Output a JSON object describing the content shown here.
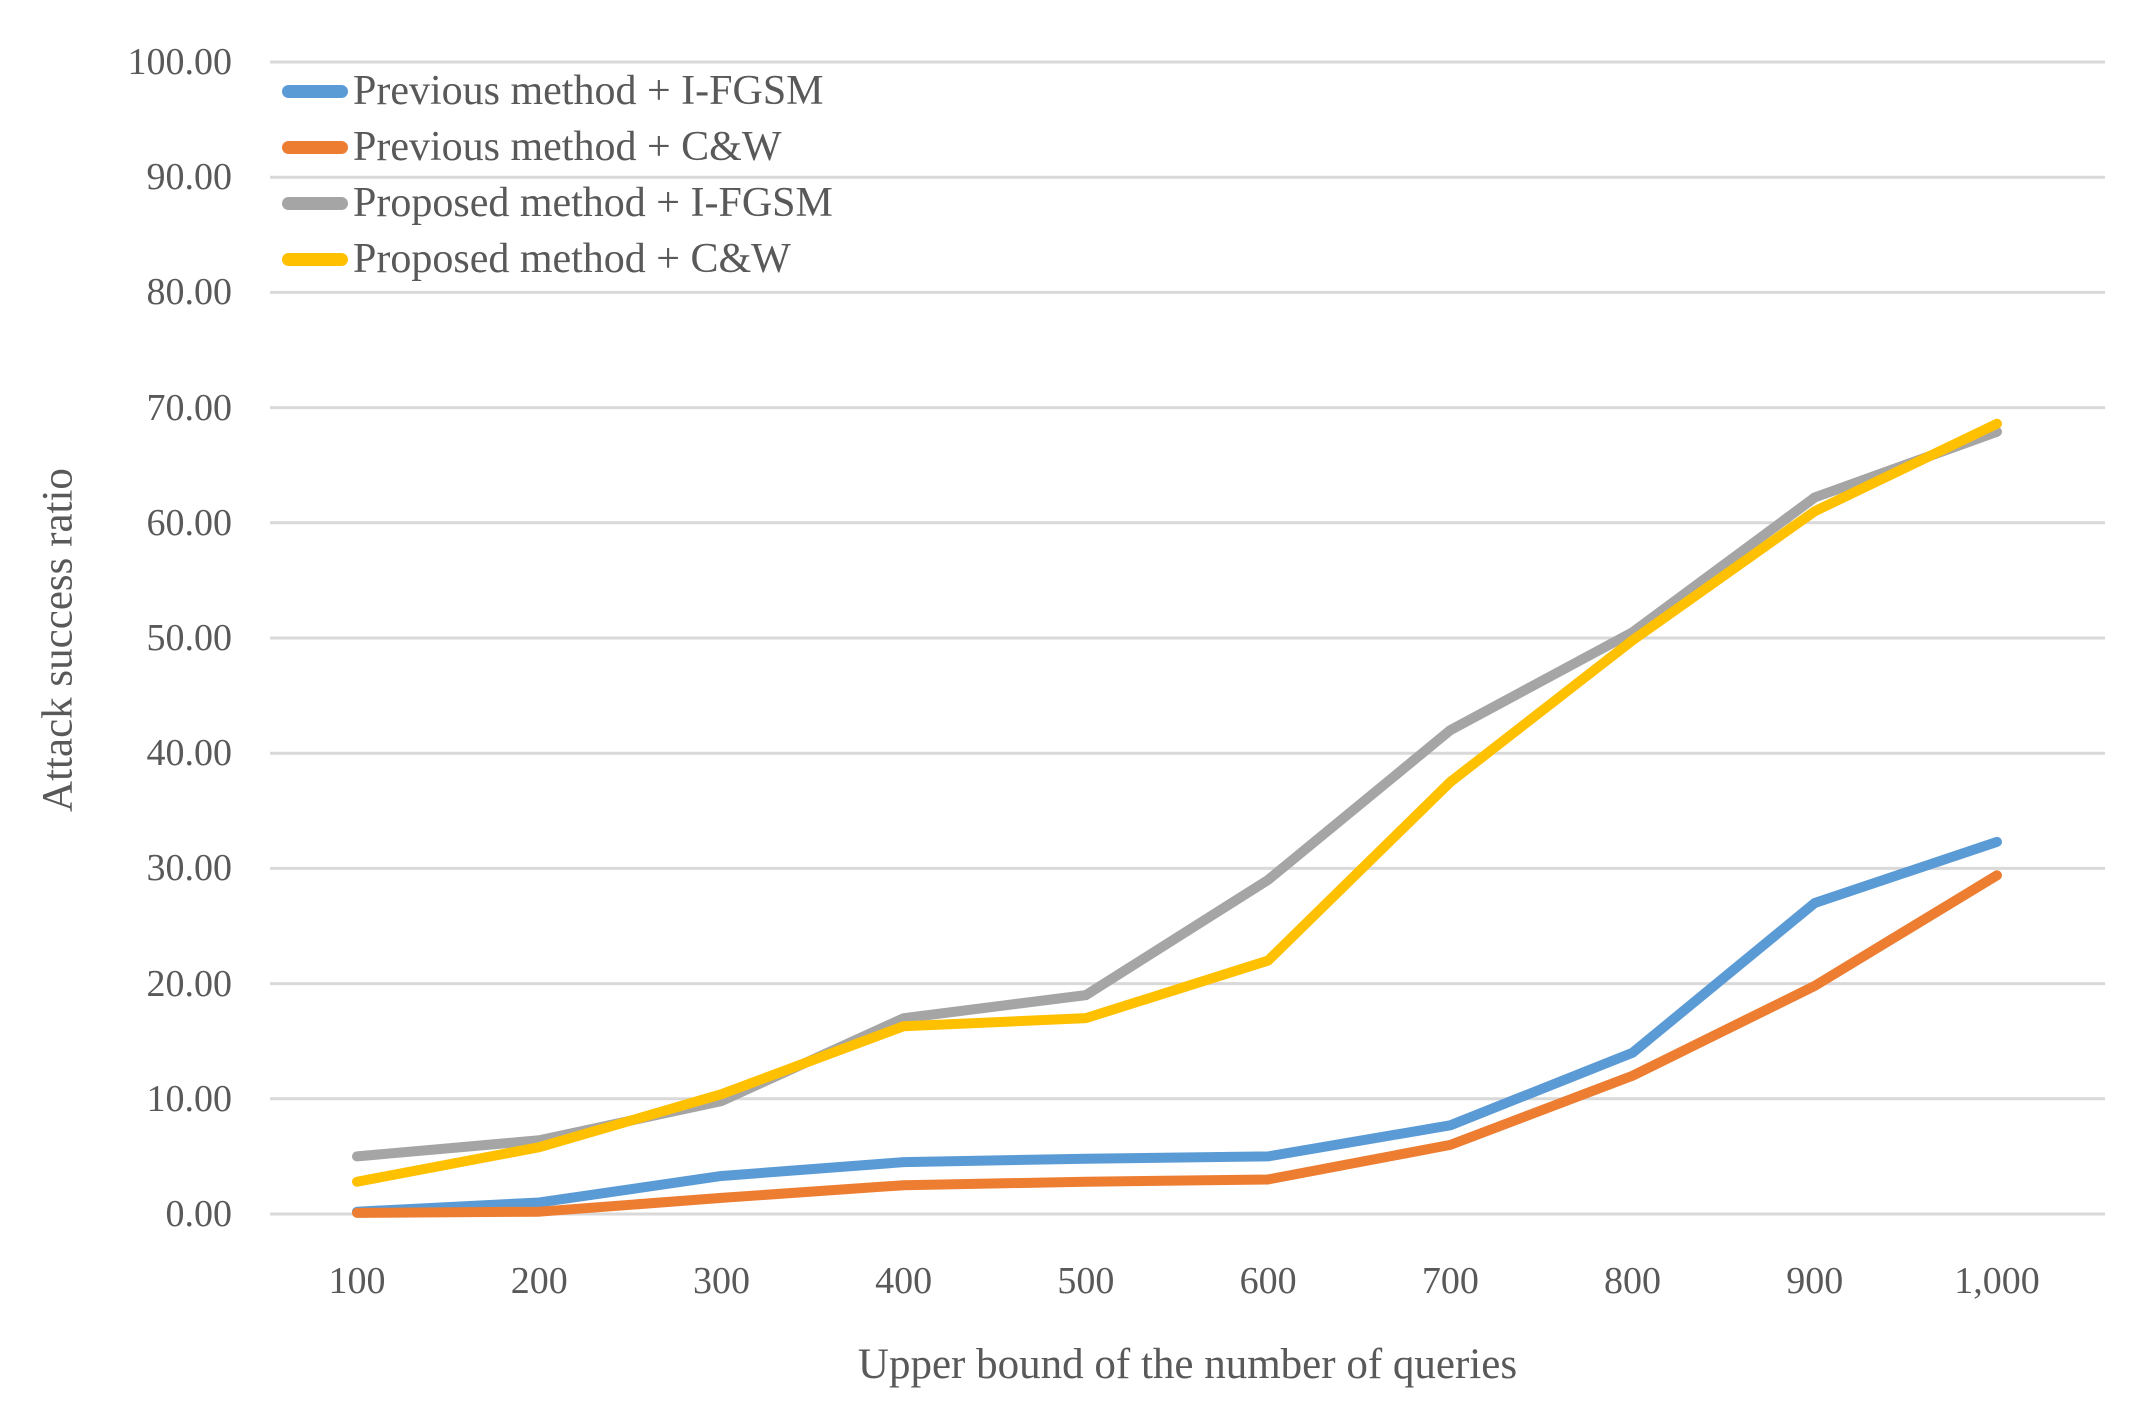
{
  "colors": {
    "background": "#FFFFFF",
    "gridline": "#D9D9D9",
    "text": "#595959",
    "series_blue": "#5B9BD5",
    "series_orange": "#ED7D31",
    "series_gray": "#A5A5A5",
    "series_yellow": "#FFC000"
  },
  "chart_data": {
    "type": "line",
    "title": "",
    "xlabel": "Upper bound of the number of queries",
    "ylabel": "Attack success ratio",
    "categories": [
      100,
      200,
      300,
      400,
      500,
      600,
      700,
      800,
      900,
      1000
    ],
    "x_tick_labels": [
      "100",
      "200",
      "300",
      "400",
      "500",
      "600",
      "700",
      "800",
      "900",
      "1,000"
    ],
    "y_tick_labels": [
      "0.00",
      "10.00",
      "20.00",
      "30.00",
      "40.00",
      "50.00",
      "60.00",
      "70.00",
      "80.00",
      "90.00",
      "100.00"
    ],
    "ylim": [
      0,
      100
    ],
    "grid": "horizontal-only",
    "legend_position": "top-left-inside",
    "series": [
      {
        "name": "Previous method + I-FGSM",
        "color": "#5B9BD5",
        "values": [
          0.2,
          1.0,
          3.3,
          4.5,
          4.8,
          5.0,
          7.7,
          14.0,
          27.0,
          32.3
        ]
      },
      {
        "name": "Previous method + C&W",
        "color": "#ED7D31",
        "values": [
          0.1,
          0.2,
          1.4,
          2.5,
          2.8,
          3.0,
          6.0,
          12.0,
          19.8,
          29.4
        ]
      },
      {
        "name": "Proposed method + I-FGSM",
        "color": "#A5A5A5",
        "values": [
          5.0,
          6.4,
          9.8,
          17.0,
          19.0,
          29.0,
          42.0,
          50.5,
          62.2,
          67.9
        ]
      },
      {
        "name": "Proposed method + C&W",
        "color": "#FFC000",
        "values": [
          2.8,
          5.8,
          10.4,
          16.3,
          17.0,
          22.0,
          37.5,
          49.8,
          61.0,
          68.6
        ]
      }
    ]
  }
}
